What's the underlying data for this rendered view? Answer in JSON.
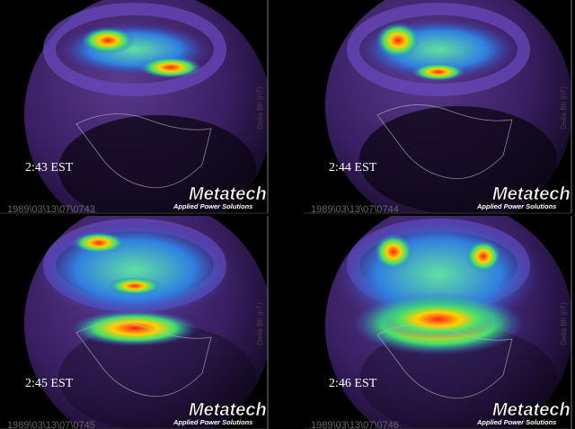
{
  "panels": [
    {
      "time": "2:43 EST",
      "timestamp": "1989\\03\\13\\07\\0743",
      "brand": "Metatech",
      "tagline": "Applied Power Solutions",
      "axis_label": "Delta Bh (nT)"
    },
    {
      "time": "2:44 EST",
      "timestamp": "1989\\03\\13\\07\\0744",
      "brand": "Metatech",
      "tagline": "Applied Power Solutions",
      "axis_label": "Delta Bh (nT)"
    },
    {
      "time": "2:45 EST",
      "timestamp": "1989\\03\\13\\07\\0745",
      "brand": "Metatech",
      "tagline": "Applied Power Solutions",
      "axis_label": "Delta Bh (nT)"
    },
    {
      "time": "2:46 EST",
      "timestamp": "1989\\03\\13\\07\\0746",
      "brand": "Metatech",
      "tagline": "Applied Power Solutions",
      "axis_label": "Delta Bh (nT)"
    }
  ]
}
